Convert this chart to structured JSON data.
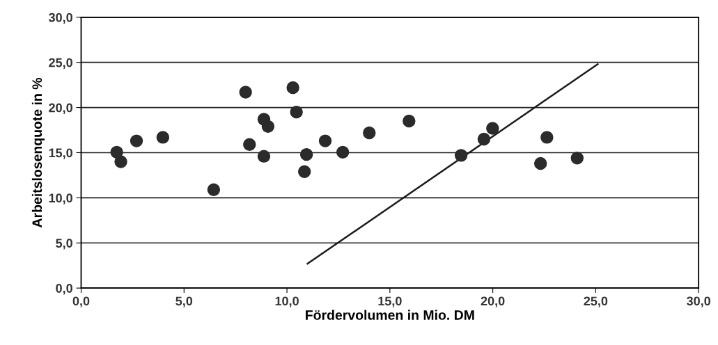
{
  "chart_data": {
    "type": "scatter",
    "xlabel": "Fördervolumen in Mio. DM",
    "ylabel": "Arbeitslosenquote in %",
    "series": [
      {
        "color": "#2b2b2b",
        "marker": "circle",
        "x": [
          1.73,
          1.93,
          2.69,
          3.97,
          6.44,
          7.99,
          8.18,
          8.88,
          8.88,
          9.08,
          10.29,
          10.46,
          10.95,
          10.85,
          11.86,
          12.71,
          14.0,
          15.93,
          18.46,
          19.57,
          19.99,
          22.63,
          22.32,
          24.1
        ],
        "values": [
          15.05,
          14.0,
          16.3,
          16.7,
          10.9,
          21.7,
          15.9,
          18.7,
          14.6,
          17.9,
          22.2,
          19.5,
          14.8,
          12.9,
          16.3,
          15.05,
          17.2,
          18.5,
          14.7,
          16.5,
          17.7,
          16.7,
          13.8,
          14.4
        ]
      },
      {
        "type": "line",
        "color": "#1a1a1a",
        "marker": "none",
        "line_style": "solid",
        "x": [
          11.0,
          25.1
        ],
        "values": [
          2.7,
          24.8
        ]
      }
    ],
    "xlim": [
      0,
      30
    ],
    "ylim": [
      0,
      30
    ],
    "xticks": [
      {
        "value": 0,
        "label": "0,0"
      },
      {
        "value": 5,
        "label": "5,0"
      },
      {
        "value": 10,
        "label": "10,0"
      },
      {
        "value": 15,
        "label": "15,0"
      },
      {
        "value": 20,
        "label": "20,0"
      },
      {
        "value": 25,
        "label": "25,0"
      },
      {
        "value": 30,
        "label": "30,0"
      }
    ],
    "yticks": [
      {
        "value": 0,
        "label": "0,0"
      },
      {
        "value": 5,
        "label": "5,0"
      },
      {
        "value": 10,
        "label": "10,0"
      },
      {
        "value": 15,
        "label": "15,0"
      },
      {
        "value": 20,
        "label": "20,0"
      },
      {
        "value": 25,
        "label": "25,0"
      },
      {
        "value": 30,
        "label": "30,0"
      }
    ],
    "grid": "y"
  }
}
